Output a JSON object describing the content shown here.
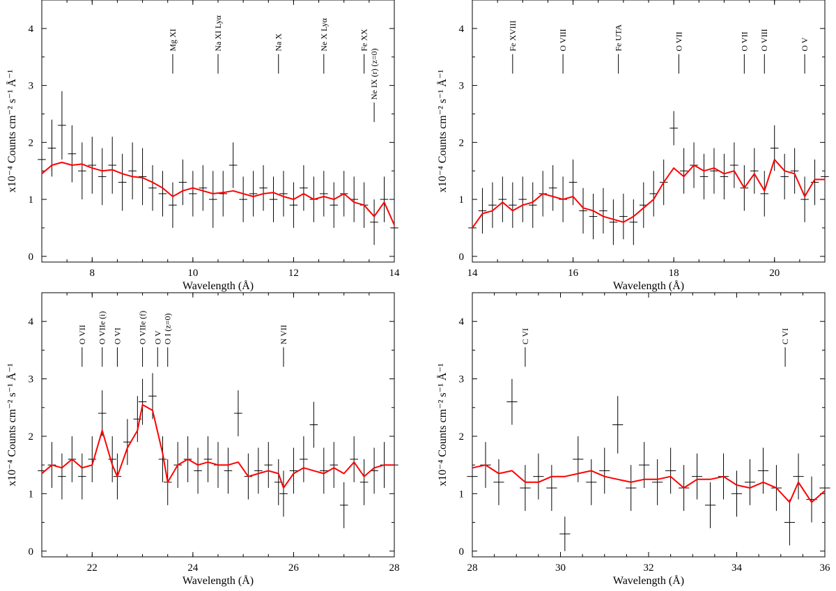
{
  "chart_data": [
    {
      "type": "line",
      "panel": "top-left",
      "xlabel": "Wavelength (Å)",
      "ylabel": "x10⁻⁴ Counts cm⁻² s⁻¹ Å⁻¹",
      "xlim": [
        7,
        14
      ],
      "ylim": [
        -0.1,
        4.5
      ],
      "xticks": [
        8,
        10,
        12,
        14
      ],
      "yticks": [
        0,
        1,
        2,
        3,
        4
      ],
      "annotations": [
        {
          "label": "Mg XI",
          "x": 9.6,
          "y_top": 3.55
        },
        {
          "label": "Na XI Lyα",
          "x": 10.5,
          "y_top": 3.55
        },
        {
          "label": "Na X",
          "x": 11.7,
          "y_top": 3.55
        },
        {
          "label": "Ne X Lyα",
          "x": 12.6,
          "y_top": 3.55
        },
        {
          "label": "Fe XX",
          "x": 13.4,
          "y_top": 3.55
        },
        {
          "label": "Ne IX (r) (z=0)",
          "x": 13.6,
          "y_top": 2.7
        }
      ],
      "series": [
        {
          "x": [
            7.0,
            7.2,
            7.4,
            7.6,
            7.8,
            8.0,
            8.2,
            8.4,
            8.6,
            8.8,
            9.0,
            9.2,
            9.4,
            9.6,
            9.8,
            10.0,
            10.2,
            10.4,
            10.6,
            10.8,
            11.0,
            11.2,
            11.4,
            11.6,
            11.8,
            12.0,
            12.2,
            12.4,
            12.6,
            12.8,
            13.0,
            13.2,
            13.4,
            13.6,
            13.8,
            14.0
          ],
          "y": [
            1.45,
            1.6,
            1.65,
            1.6,
            1.62,
            1.55,
            1.5,
            1.52,
            1.45,
            1.4,
            1.38,
            1.3,
            1.2,
            1.05,
            1.15,
            1.2,
            1.15,
            1.1,
            1.12,
            1.15,
            1.1,
            1.05,
            1.1,
            1.12,
            1.05,
            1.0,
            1.1,
            1.0,
            1.05,
            1.0,
            1.1,
            0.95,
            0.9,
            0.7,
            0.95,
            0.55
          ]
        }
      ],
      "data_points": {
        "x": [
          7.0,
          7.2,
          7.4,
          7.6,
          7.8,
          8.0,
          8.2,
          8.4,
          8.6,
          8.8,
          9.0,
          9.2,
          9.4,
          9.6,
          9.8,
          10.0,
          10.2,
          10.4,
          10.6,
          10.8,
          11.0,
          11.2,
          11.4,
          11.6,
          11.8,
          12.0,
          12.2,
          12.4,
          12.6,
          12.8,
          13.0,
          13.2,
          13.4,
          13.6,
          13.8,
          14.0
        ],
        "y": [
          1.7,
          1.9,
          2.3,
          1.8,
          1.5,
          1.6,
          1.4,
          1.6,
          1.3,
          1.5,
          1.4,
          1.2,
          1.1,
          0.9,
          1.3,
          1.1,
          1.2,
          1.0,
          1.1,
          1.6,
          1.0,
          1.1,
          1.2,
          1.0,
          1.1,
          0.9,
          1.2,
          1.0,
          1.1,
          0.9,
          1.1,
          1.0,
          0.9,
          0.6,
          1.0,
          0.5
        ],
        "err": [
          0.5,
          0.5,
          0.6,
          0.5,
          0.5,
          0.5,
          0.5,
          0.5,
          0.5,
          0.5,
          0.5,
          0.4,
          0.4,
          0.4,
          0.4,
          0.4,
          0.4,
          0.5,
          0.4,
          0.4,
          0.4,
          0.4,
          0.4,
          0.4,
          0.4,
          0.4,
          0.4,
          0.4,
          0.4,
          0.4,
          0.4,
          0.4,
          0.4,
          0.4,
          0.4,
          0.4
        ]
      }
    },
    {
      "type": "line",
      "panel": "top-right",
      "xlabel": "Wavelength (Å)",
      "ylabel": "x10⁻⁴ Counts cm⁻² s⁻¹ Å⁻¹",
      "xlim": [
        14,
        21
      ],
      "ylim": [
        -0.1,
        4.5
      ],
      "xticks": [
        14,
        16,
        18,
        20
      ],
      "yticks": [
        0,
        1,
        2,
        3,
        4
      ],
      "annotations": [
        {
          "label": "Fe XVIII",
          "x": 14.8,
          "y_top": 3.55
        },
        {
          "label": "O VIII",
          "x": 15.8,
          "y_top": 3.55
        },
        {
          "label": "Fe UTA",
          "x": 16.9,
          "y_top": 3.55
        },
        {
          "label": "O VII",
          "x": 18.1,
          "y_top": 3.55
        },
        {
          "label": "O VII",
          "x": 19.4,
          "y_top": 3.55
        },
        {
          "label": "O VIII",
          "x": 19.8,
          "y_top": 3.55
        },
        {
          "label": "O V",
          "x": 20.6,
          "y_top": 3.55
        }
      ],
      "series": [
        {
          "x": [
            14.0,
            14.2,
            14.4,
            14.6,
            14.8,
            15.0,
            15.2,
            15.4,
            15.6,
            15.8,
            16.0,
            16.2,
            16.4,
            16.6,
            16.8,
            17.0,
            17.2,
            17.4,
            17.6,
            17.8,
            18.0,
            18.2,
            18.4,
            18.6,
            18.8,
            19.0,
            19.2,
            19.4,
            19.6,
            19.8,
            20.0,
            20.2,
            20.4,
            20.6,
            20.8,
            21.0
          ],
          "y": [
            0.5,
            0.75,
            0.8,
            0.95,
            0.8,
            0.9,
            0.95,
            1.1,
            1.05,
            1.0,
            1.05,
            0.85,
            0.8,
            0.7,
            0.65,
            0.6,
            0.7,
            0.85,
            1.0,
            1.3,
            1.55,
            1.4,
            1.6,
            1.5,
            1.55,
            1.45,
            1.5,
            1.2,
            1.45,
            1.15,
            1.7,
            1.5,
            1.45,
            1.05,
            1.35,
            1.35
          ]
        }
      ],
      "data_points": {
        "x": [
          14.0,
          14.2,
          14.4,
          14.6,
          14.8,
          15.0,
          15.2,
          15.4,
          15.6,
          15.8,
          16.0,
          16.2,
          16.4,
          16.6,
          16.8,
          17.0,
          17.2,
          17.4,
          17.6,
          17.8,
          18.0,
          18.2,
          18.4,
          18.6,
          18.8,
          19.0,
          19.2,
          19.4,
          19.6,
          19.8,
          20.0,
          20.2,
          20.4,
          20.6,
          20.8,
          21.0
        ],
        "y": [
          0.5,
          0.8,
          0.9,
          1.0,
          0.9,
          1.0,
          0.9,
          1.1,
          1.2,
          1.0,
          1.3,
          0.8,
          0.7,
          0.8,
          0.6,
          0.7,
          0.6,
          0.9,
          1.1,
          1.3,
          2.25,
          1.5,
          1.6,
          1.4,
          1.5,
          1.4,
          1.6,
          1.2,
          1.5,
          1.1,
          1.9,
          1.4,
          1.5,
          1.0,
          1.3,
          1.4
        ],
        "err": [
          0.4,
          0.4,
          0.4,
          0.4,
          0.4,
          0.4,
          0.4,
          0.4,
          0.4,
          0.4,
          0.4,
          0.4,
          0.4,
          0.4,
          0.4,
          0.4,
          0.4,
          0.4,
          0.4,
          0.4,
          0.3,
          0.4,
          0.4,
          0.4,
          0.4,
          0.4,
          0.4,
          0.4,
          0.4,
          0.4,
          0.4,
          0.4,
          0.4,
          0.4,
          0.4,
          0.4
        ]
      }
    },
    {
      "type": "line",
      "panel": "bottom-left",
      "xlabel": "Wavelength (Å)",
      "ylabel": "x10⁻⁴ Counts cm⁻² s⁻¹ Å⁻¹",
      "xlim": [
        21,
        28
      ],
      "ylim": [
        -0.1,
        4.5
      ],
      "xticks": [
        22,
        24,
        26,
        28
      ],
      "yticks": [
        0,
        1,
        2,
        3,
        4
      ],
      "annotations": [
        {
          "label": "O VII",
          "x": 21.8,
          "y_top": 3.55
        },
        {
          "label": "O VIIe (i)",
          "x": 22.2,
          "y_top": 3.55
        },
        {
          "label": "O VI",
          "x": 22.5,
          "y_top": 3.55
        },
        {
          "label": "O VIIe (f)",
          "x": 23.0,
          "y_top": 3.55
        },
        {
          "label": "O V",
          "x": 23.3,
          "y_top": 3.55
        },
        {
          "label": "O I (z=0)",
          "x": 23.5,
          "y_top": 3.55
        },
        {
          "label": "N VII",
          "x": 25.8,
          "y_top": 3.55
        }
      ],
      "series": [
        {
          "x": [
            21.0,
            21.2,
            21.4,
            21.6,
            21.8,
            22.0,
            22.2,
            22.4,
            22.5,
            22.7,
            22.9,
            23.0,
            23.2,
            23.4,
            23.5,
            23.7,
            23.9,
            24.1,
            24.3,
            24.5,
            24.7,
            24.9,
            25.1,
            25.3,
            25.5,
            25.7,
            25.8,
            26.0,
            26.2,
            26.4,
            26.6,
            26.8,
            27.0,
            27.2,
            27.4,
            27.6,
            27.8,
            28.0
          ],
          "y": [
            1.35,
            1.5,
            1.45,
            1.6,
            1.45,
            1.5,
            2.1,
            1.5,
            1.3,
            1.8,
            2.1,
            2.55,
            2.45,
            1.7,
            1.2,
            1.5,
            1.6,
            1.5,
            1.55,
            1.5,
            1.5,
            1.55,
            1.3,
            1.35,
            1.4,
            1.35,
            1.1,
            1.35,
            1.45,
            1.4,
            1.35,
            1.45,
            1.35,
            1.55,
            1.3,
            1.45,
            1.5,
            1.5
          ]
        }
      ],
      "data_points": {
        "x": [
          21.0,
          21.2,
          21.4,
          21.6,
          21.8,
          22.0,
          22.2,
          22.4,
          22.5,
          22.7,
          22.9,
          23.0,
          23.2,
          23.4,
          23.5,
          23.7,
          23.9,
          24.1,
          24.3,
          24.5,
          24.7,
          24.9,
          25.1,
          25.3,
          25.5,
          25.7,
          25.8,
          26.0,
          26.2,
          26.4,
          26.6,
          26.8,
          27.0,
          27.2,
          27.4,
          27.6,
          27.8,
          28.0
        ],
        "y": [
          1.4,
          1.5,
          1.3,
          1.6,
          1.3,
          1.6,
          2.4,
          1.6,
          1.3,
          1.9,
          2.3,
          2.6,
          2.7,
          1.6,
          1.2,
          1.5,
          1.6,
          1.4,
          1.6,
          1.5,
          1.4,
          2.4,
          1.3,
          1.4,
          1.5,
          1.2,
          1.0,
          1.4,
          1.6,
          2.2,
          1.4,
          1.5,
          0.8,
          1.6,
          1.2,
          1.4,
          1.5,
          1.5
        ],
        "err": [
          0.4,
          0.4,
          0.4,
          0.4,
          0.4,
          0.4,
          0.4,
          0.4,
          0.4,
          0.4,
          0.4,
          0.4,
          0.4,
          0.4,
          0.4,
          0.4,
          0.4,
          0.4,
          0.4,
          0.4,
          0.4,
          0.4,
          0.4,
          0.4,
          0.4,
          0.4,
          0.4,
          0.4,
          0.4,
          0.4,
          0.4,
          0.4,
          0.4,
          0.4,
          0.4,
          0.4,
          0.4,
          0.4
        ]
      }
    },
    {
      "type": "line",
      "panel": "bottom-right",
      "xlabel": "Wavelength (Å)",
      "ylabel": "x10⁻⁴ Counts cm⁻² s⁻¹ Å⁻¹",
      "xlim": [
        28,
        36
      ],
      "ylim": [
        -0.1,
        4.5
      ],
      "xticks": [
        28,
        30,
        32,
        34,
        36
      ],
      "yticks": [
        0,
        1,
        2,
        3,
        4
      ],
      "annotations": [
        {
          "label": "C VI",
          "x": 29.2,
          "y_top": 3.55
        },
        {
          "label": "C VI",
          "x": 35.1,
          "y_top": 3.55
        }
      ],
      "series": [
        {
          "x": [
            28.0,
            28.3,
            28.6,
            28.9,
            29.2,
            29.5,
            29.8,
            30.1,
            30.4,
            30.7,
            31.0,
            31.3,
            31.6,
            31.9,
            32.2,
            32.5,
            32.8,
            33.1,
            33.4,
            33.7,
            34.0,
            34.3,
            34.6,
            34.9,
            35.2,
            35.4,
            35.7,
            36.0
          ],
          "y": [
            1.45,
            1.5,
            1.35,
            1.4,
            1.2,
            1.2,
            1.3,
            1.3,
            1.35,
            1.4,
            1.3,
            1.25,
            1.2,
            1.25,
            1.25,
            1.3,
            1.1,
            1.25,
            1.25,
            1.3,
            1.15,
            1.1,
            1.2,
            1.1,
            0.85,
            1.2,
            0.85,
            1.05
          ]
        }
      ],
      "data_points": {
        "x": [
          28.0,
          28.3,
          28.6,
          28.9,
          29.2,
          29.5,
          29.8,
          30.1,
          30.4,
          30.7,
          31.0,
          31.3,
          31.6,
          31.9,
          32.2,
          32.5,
          32.8,
          33.1,
          33.4,
          33.7,
          34.0,
          34.3,
          34.6,
          34.9,
          35.2,
          35.4,
          35.7,
          36.0
        ],
        "y": [
          1.3,
          1.5,
          1.2,
          2.6,
          1.1,
          1.3,
          1.1,
          0.3,
          1.6,
          1.2,
          1.4,
          2.2,
          1.1,
          1.5,
          1.2,
          1.4,
          1.1,
          1.3,
          0.8,
          1.3,
          1.0,
          1.2,
          1.4,
          1.1,
          0.5,
          1.3,
          0.9,
          1.1
        ],
        "err": [
          0.4,
          0.4,
          0.4,
          0.4,
          0.4,
          0.4,
          0.4,
          0.3,
          0.4,
          0.4,
          0.4,
          0.5,
          0.4,
          0.4,
          0.4,
          0.4,
          0.4,
          0.4,
          0.4,
          0.4,
          0.4,
          0.4,
          0.4,
          0.4,
          0.4,
          0.4,
          0.4,
          0.4
        ]
      }
    }
  ],
  "colors": {
    "model": "#ff0000",
    "data": "#000000",
    "frame": "#000000"
  }
}
